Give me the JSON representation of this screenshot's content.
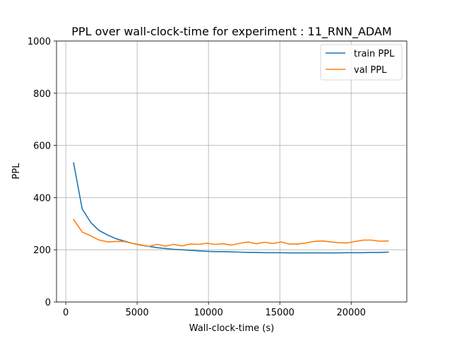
{
  "chart_data": {
    "type": "line",
    "title": "PPL over wall-clock-time for experiment : 11_RNN_ADAM",
    "xlabel": "Wall-clock-time (s)",
    "ylabel": "PPL",
    "xlim": [
      -650,
      23900
    ],
    "ylim": [
      0,
      1000
    ],
    "x_ticks": [
      0,
      5000,
      10000,
      15000,
      20000
    ],
    "x_tick_labels": [
      "0",
      "5000",
      "10000",
      "15000",
      "20000"
    ],
    "y_ticks": [
      0,
      200,
      400,
      600,
      800,
      1000
    ],
    "y_tick_labels": [
      "0",
      "200",
      "400",
      "600",
      "800",
      "1000"
    ],
    "grid": true,
    "legend_position": "top-right",
    "series": [
      {
        "name": "train PPL",
        "color": "#1f77b4",
        "x": [
          550,
          1150,
          1750,
          2300,
          2950,
          3500,
          4050,
          4650,
          5250,
          5850,
          6400,
          7000,
          7550,
          8150,
          8700,
          9300,
          9900,
          10450,
          11050,
          11600,
          12200,
          12800,
          13350,
          13950,
          14500,
          15100,
          15650,
          16250,
          16800,
          17400,
          18000,
          18550,
          19100,
          19700,
          20300,
          20850,
          21400,
          22000,
          22600
        ],
        "values": [
          533,
          356,
          305,
          275,
          256,
          243,
          234,
          225,
          218,
          213,
          208,
          205,
          202,
          200,
          198,
          196,
          194,
          193,
          193,
          192,
          191,
          190,
          190,
          189,
          189,
          189,
          188,
          188,
          188,
          188,
          188,
          188,
          188,
          189,
          189,
          189,
          190,
          190,
          191
        ]
      },
      {
        "name": "val PPL",
        "color": "#ff7f0e",
        "x": [
          550,
          1150,
          1750,
          2300,
          2950,
          3500,
          4050,
          4650,
          5250,
          5850,
          6400,
          7000,
          7550,
          8150,
          8700,
          9300,
          9900,
          10450,
          11050,
          11600,
          12200,
          12800,
          13350,
          13950,
          14500,
          15100,
          15650,
          16250,
          16800,
          17400,
          18000,
          18550,
          19100,
          19700,
          20300,
          20850,
          21400,
          22000,
          22600
        ],
        "values": [
          316,
          268,
          254,
          238,
          230,
          232,
          232,
          225,
          219,
          213,
          221,
          214,
          221,
          215,
          222,
          221,
          225,
          221,
          223,
          218,
          225,
          230,
          223,
          229,
          224,
          230,
          222,
          222,
          226,
          232,
          234,
          230,
          227,
          226,
          232,
          237,
          237,
          233,
          234
        ]
      }
    ]
  }
}
